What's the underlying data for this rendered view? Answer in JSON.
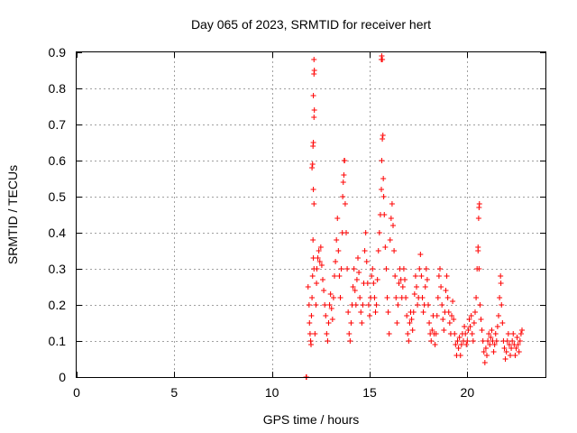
{
  "chart_data": {
    "type": "scatter",
    "title": "Day 065 of 2023, SRMTID for receiver hert",
    "xlabel": "GPS time / hours",
    "ylabel": "SRMTID / TECUs",
    "xlim": [
      0,
      24
    ],
    "ylim": [
      0,
      0.9
    ],
    "xticks": [
      0,
      5,
      10,
      15,
      20
    ],
    "yticks": [
      0,
      0.1,
      0.2,
      0.3,
      0.4,
      0.5,
      0.6,
      0.7,
      0.8,
      0.9
    ],
    "xtick_labels": [
      "0",
      "5",
      "10",
      "15",
      "20"
    ],
    "ytick_labels": [
      "0",
      "0.1",
      "0.2",
      "0.3",
      "0.4",
      "0.5",
      "0.6",
      "0.7",
      "0.8",
      "0.9"
    ],
    "grid": true,
    "marker": "+",
    "color": "#ff0000",
    "series": [
      {
        "name": "SRMTID",
        "points": [
          [
            11.75,
            0.0
          ],
          [
            11.77,
            0.0
          ],
          [
            11.85,
            0.25
          ],
          [
            11.9,
            0.2
          ],
          [
            11.92,
            0.15
          ],
          [
            11.95,
            0.12
          ],
          [
            11.98,
            0.1
          ],
          [
            12.0,
            0.09
          ],
          [
            12.02,
            0.17
          ],
          [
            12.05,
            0.22
          ],
          [
            12.08,
            0.28
          ],
          [
            12.1,
            0.38
          ],
          [
            12.12,
            0.33
          ],
          [
            12.15,
            0.3
          ],
          [
            12.05,
            0.58
          ],
          [
            12.08,
            0.59
          ],
          [
            12.1,
            0.64
          ],
          [
            12.12,
            0.65
          ],
          [
            12.15,
            0.72
          ],
          [
            12.17,
            0.74
          ],
          [
            12.12,
            0.78
          ],
          [
            12.15,
            0.84
          ],
          [
            12.17,
            0.85
          ],
          [
            12.15,
            0.88
          ],
          [
            12.12,
            0.52
          ],
          [
            12.15,
            0.48
          ],
          [
            12.2,
            0.12
          ],
          [
            12.25,
            0.2
          ],
          [
            12.28,
            0.26
          ],
          [
            12.3,
            0.3
          ],
          [
            12.35,
            0.33
          ],
          [
            12.4,
            0.35
          ],
          [
            12.45,
            0.32
          ],
          [
            12.5,
            0.36
          ],
          [
            12.55,
            0.31
          ],
          [
            12.6,
            0.27
          ],
          [
            12.65,
            0.24
          ],
          [
            12.7,
            0.2
          ],
          [
            12.75,
            0.17
          ],
          [
            12.8,
            0.12
          ],
          [
            12.85,
            0.1
          ],
          [
            12.9,
            0.15
          ],
          [
            12.95,
            0.2
          ],
          [
            13.0,
            0.23
          ],
          [
            13.05,
            0.19
          ],
          [
            13.1,
            0.16
          ],
          [
            13.15,
            0.22
          ],
          [
            13.2,
            0.28
          ],
          [
            13.25,
            0.32
          ],
          [
            13.3,
            0.38
          ],
          [
            13.35,
            0.44
          ],
          [
            13.4,
            0.35
          ],
          [
            13.45,
            0.28
          ],
          [
            13.5,
            0.22
          ],
          [
            13.55,
            0.3
          ],
          [
            13.6,
            0.4
          ],
          [
            13.62,
            0.5
          ],
          [
            13.65,
            0.54
          ],
          [
            13.68,
            0.56
          ],
          [
            13.7,
            0.6
          ],
          [
            13.72,
            0.6
          ],
          [
            13.75,
            0.48
          ],
          [
            13.8,
            0.4
          ],
          [
            13.85,
            0.3
          ],
          [
            13.9,
            0.18
          ],
          [
            13.95,
            0.12
          ],
          [
            14.0,
            0.1
          ],
          [
            14.05,
            0.15
          ],
          [
            14.1,
            0.2
          ],
          [
            14.15,
            0.25
          ],
          [
            14.2,
            0.3
          ],
          [
            14.25,
            0.24
          ],
          [
            14.3,
            0.2
          ],
          [
            14.35,
            0.27
          ],
          [
            14.4,
            0.33
          ],
          [
            14.45,
            0.29
          ],
          [
            14.5,
            0.22
          ],
          [
            14.55,
            0.18
          ],
          [
            14.6,
            0.15
          ],
          [
            14.65,
            0.2
          ],
          [
            14.7,
            0.26
          ],
          [
            14.75,
            0.35
          ],
          [
            14.8,
            0.4
          ],
          [
            14.85,
            0.32
          ],
          [
            14.9,
            0.26
          ],
          [
            14.95,
            0.2
          ],
          [
            15.0,
            0.17
          ],
          [
            15.05,
            0.22
          ],
          [
            15.1,
            0.28
          ],
          [
            15.15,
            0.3
          ],
          [
            15.2,
            0.26
          ],
          [
            15.25,
            0.22
          ],
          [
            15.3,
            0.18
          ],
          [
            15.35,
            0.2
          ],
          [
            15.4,
            0.27
          ],
          [
            15.45,
            0.35
          ],
          [
            15.5,
            0.4
          ],
          [
            15.55,
            0.45
          ],
          [
            15.6,
            0.52
          ],
          [
            15.62,
            0.6
          ],
          [
            15.65,
            0.66
          ],
          [
            15.68,
            0.67
          ],
          [
            15.6,
            0.88
          ],
          [
            15.62,
            0.89
          ],
          [
            15.65,
            0.88
          ],
          [
            15.7,
            0.55
          ],
          [
            15.72,
            0.5
          ],
          [
            15.75,
            0.45
          ],
          [
            15.8,
            0.36
          ],
          [
            15.85,
            0.3
          ],
          [
            15.9,
            0.22
          ],
          [
            15.95,
            0.18
          ],
          [
            16.0,
            0.12
          ],
          [
            16.05,
            0.38
          ],
          [
            16.1,
            0.44
          ],
          [
            16.15,
            0.48
          ],
          [
            16.2,
            0.42
          ],
          [
            16.25,
            0.35
          ],
          [
            16.3,
            0.28
          ],
          [
            16.35,
            0.22
          ],
          [
            16.4,
            0.15
          ],
          [
            16.45,
            0.2
          ],
          [
            16.5,
            0.26
          ],
          [
            16.55,
            0.3
          ],
          [
            16.6,
            0.27
          ],
          [
            16.65,
            0.22
          ],
          [
            16.7,
            0.25
          ],
          [
            16.75,
            0.3
          ],
          [
            16.8,
            0.27
          ],
          [
            16.85,
            0.22
          ],
          [
            16.9,
            0.17
          ],
          [
            16.95,
            0.12
          ],
          [
            17.0,
            0.1
          ],
          [
            17.05,
            0.15
          ],
          [
            17.1,
            0.18
          ],
          [
            17.15,
            0.16
          ],
          [
            17.2,
            0.13
          ],
          [
            17.25,
            0.18
          ],
          [
            17.3,
            0.23
          ],
          [
            17.35,
            0.28
          ],
          [
            17.4,
            0.25
          ],
          [
            17.45,
            0.2
          ],
          [
            17.5,
            0.22
          ],
          [
            17.55,
            0.3
          ],
          [
            17.6,
            0.34
          ],
          [
            17.65,
            0.28
          ],
          [
            17.7,
            0.22
          ],
          [
            17.75,
            0.18
          ],
          [
            17.8,
            0.2
          ],
          [
            17.85,
            0.25
          ],
          [
            17.9,
            0.3
          ],
          [
            17.95,
            0.27
          ],
          [
            18.0,
            0.2
          ],
          [
            18.05,
            0.15
          ],
          [
            18.1,
            0.12
          ],
          [
            18.15,
            0.1
          ],
          [
            18.2,
            0.13
          ],
          [
            18.25,
            0.17
          ],
          [
            18.3,
            0.12
          ],
          [
            18.35,
            0.09
          ],
          [
            18.4,
            0.12
          ],
          [
            18.45,
            0.17
          ],
          [
            18.5,
            0.22
          ],
          [
            18.55,
            0.28
          ],
          [
            18.6,
            0.3
          ],
          [
            18.65,
            0.25
          ],
          [
            18.7,
            0.2
          ],
          [
            18.75,
            0.16
          ],
          [
            18.8,
            0.13
          ],
          [
            18.85,
            0.18
          ],
          [
            18.9,
            0.24
          ],
          [
            18.95,
            0.28
          ],
          [
            19.0,
            0.22
          ],
          [
            19.05,
            0.18
          ],
          [
            19.1,
            0.15
          ],
          [
            19.15,
            0.12
          ],
          [
            19.2,
            0.17
          ],
          [
            19.25,
            0.21
          ],
          [
            19.3,
            0.16
          ],
          [
            19.35,
            0.12
          ],
          [
            19.4,
            0.09
          ],
          [
            19.45,
            0.06
          ],
          [
            19.5,
            0.1
          ],
          [
            19.55,
            0.08
          ],
          [
            19.6,
            0.11
          ],
          [
            19.65,
            0.06
          ],
          [
            19.7,
            0.09
          ],
          [
            19.75,
            0.12
          ],
          [
            19.8,
            0.1
          ],
          [
            19.85,
            0.14
          ],
          [
            19.9,
            0.12
          ],
          [
            19.95,
            0.09
          ],
          [
            20.0,
            0.1
          ],
          [
            20.05,
            0.13
          ],
          [
            20.1,
            0.16
          ],
          [
            20.15,
            0.14
          ],
          [
            20.2,
            0.17
          ],
          [
            20.25,
            0.12
          ],
          [
            20.3,
            0.1
          ],
          [
            20.35,
            0.15
          ],
          [
            20.4,
            0.18
          ],
          [
            20.45,
            0.22
          ],
          [
            20.5,
            0.3
          ],
          [
            20.55,
            0.36
          ],
          [
            20.58,
            0.44
          ],
          [
            20.6,
            0.47
          ],
          [
            20.62,
            0.48
          ],
          [
            20.55,
            0.35
          ],
          [
            20.6,
            0.3
          ],
          [
            20.65,
            0.2
          ],
          [
            20.7,
            0.16
          ],
          [
            20.75,
            0.13
          ],
          [
            20.8,
            0.1
          ],
          [
            20.85,
            0.07
          ],
          [
            20.9,
            0.04
          ],
          [
            20.95,
            0.08
          ],
          [
            21.0,
            0.06
          ],
          [
            21.05,
            0.1
          ],
          [
            21.1,
            0.12
          ],
          [
            21.15,
            0.09
          ],
          [
            21.2,
            0.11
          ],
          [
            21.25,
            0.13
          ],
          [
            21.3,
            0.1
          ],
          [
            21.35,
            0.07
          ],
          [
            21.4,
            0.09
          ],
          [
            21.45,
            0.12
          ],
          [
            21.5,
            0.1
          ],
          [
            21.55,
            0.14
          ],
          [
            21.6,
            0.17
          ],
          [
            21.65,
            0.22
          ],
          [
            21.7,
            0.28
          ],
          [
            21.72,
            0.26
          ],
          [
            21.75,
            0.2
          ],
          [
            21.8,
            0.15
          ],
          [
            21.85,
            0.1
          ],
          [
            21.9,
            0.08
          ],
          [
            21.95,
            0.05
          ],
          [
            22.0,
            0.07
          ],
          [
            22.05,
            0.1
          ],
          [
            22.1,
            0.12
          ],
          [
            22.15,
            0.09
          ],
          [
            22.2,
            0.06
          ],
          [
            22.25,
            0.08
          ],
          [
            22.3,
            0.1
          ],
          [
            22.35,
            0.12
          ],
          [
            22.4,
            0.09
          ],
          [
            22.45,
            0.06
          ],
          [
            22.5,
            0.08
          ],
          [
            22.55,
            0.11
          ],
          [
            22.6,
            0.09
          ],
          [
            22.65,
            0.07
          ],
          [
            22.7,
            0.1
          ],
          [
            22.75,
            0.12
          ],
          [
            22.8,
            0.13
          ]
        ]
      }
    ]
  }
}
